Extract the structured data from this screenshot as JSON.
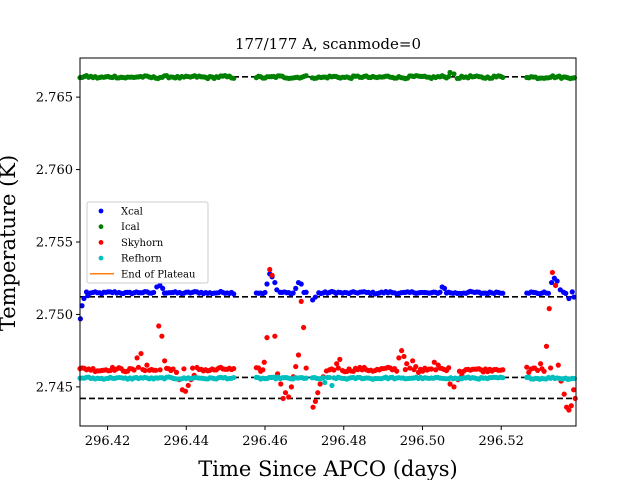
{
  "chart_data": {
    "type": "scatter",
    "title": "177/177 A, scanmode=0",
    "xlabel": "Time Since APCO (days)",
    "ylabel": "Temperature (K)",
    "xlim": [
      296.413,
      296.539
    ],
    "ylim": [
      2.7423,
      2.7677
    ],
    "xticks": [
      296.42,
      296.44,
      296.46,
      296.48,
      296.5,
      296.52
    ],
    "xtick_labels": [
      "296.42",
      "296.44",
      "296.46",
      "296.48",
      "296.50",
      "296.52"
    ],
    "yticks": [
      2.745,
      2.75,
      2.755,
      2.76,
      2.765
    ],
    "ytick_labels": [
      "2.745",
      "2.750",
      "2.755",
      "2.760",
      "2.765"
    ],
    "legend_position": "center-left",
    "segments": [
      [
        296.413,
        296.4525
      ],
      [
        296.4578,
        296.4705
      ],
      [
        296.472,
        296.5205
      ],
      [
        296.5265,
        296.539
      ]
    ],
    "reference_lines": [
      {
        "y": 2.7664,
        "x_ranges": [
          [
            296.413,
            296.5265
          ]
        ]
      },
      {
        "y": 2.75122,
        "x_ranges": [
          [
            296.413,
            296.539
          ]
        ]
      },
      {
        "y": 2.74565,
        "x_ranges": [
          [
            296.413,
            296.539
          ]
        ]
      },
      {
        "y": 2.7442,
        "x_ranges": [
          [
            296.413,
            296.539
          ]
        ]
      }
    ],
    "series": [
      {
        "name": "Xcal",
        "color": "#0000ff",
        "marker": "circle",
        "base": 2.7515,
        "noise": 7e-05,
        "points": [
          [
            296.4131,
            2.7497
          ],
          [
            296.4135,
            2.7506
          ],
          [
            296.414,
            2.7511
          ],
          [
            296.415,
            2.7513
          ],
          [
            296.4325,
            2.7519
          ],
          [
            296.4333,
            2.752
          ],
          [
            296.434,
            2.7518
          ],
          [
            296.4605,
            2.7521
          ],
          [
            296.4612,
            2.7528
          ],
          [
            296.4618,
            2.7526
          ],
          [
            296.4625,
            2.7522
          ],
          [
            296.463,
            2.7517
          ],
          [
            296.4678,
            2.7518
          ],
          [
            296.4685,
            2.7522
          ],
          [
            296.4692,
            2.7521
          ],
          [
            296.4721,
            2.751
          ],
          [
            296.4728,
            2.7512
          ],
          [
            296.505,
            2.7519
          ],
          [
            296.5056,
            2.7518
          ],
          [
            296.5328,
            2.7522
          ],
          [
            296.5335,
            2.7525
          ],
          [
            296.5342,
            2.7523
          ],
          [
            296.535,
            2.7517
          ],
          [
            296.5372,
            2.7511
          ],
          [
            296.5385,
            2.7512
          ]
        ]
      },
      {
        "name": "Ical",
        "color": "#008000",
        "marker": "circle",
        "base": 2.76638,
        "noise": 8e-05,
        "points": [
          [
            296.507,
            2.7667
          ],
          [
            296.508,
            2.7666
          ]
        ]
      },
      {
        "name": "Skyhorn",
        "color": "#ff0000",
        "marker": "circle",
        "base": 2.7462,
        "noise": 0.00012,
        "points": [
          [
            296.4275,
            2.747
          ],
          [
            296.4285,
            2.7473
          ],
          [
            296.43,
            2.7465
          ],
          [
            296.433,
            2.7492
          ],
          [
            296.4338,
            2.7485
          ],
          [
            296.4345,
            2.7468
          ],
          [
            296.4375,
            2.746
          ],
          [
            296.4382,
            2.7455
          ],
          [
            296.439,
            2.7448
          ],
          [
            296.4398,
            2.7447
          ],
          [
            296.4405,
            2.7451
          ],
          [
            296.4412,
            2.7455
          ],
          [
            296.442,
            2.7458
          ],
          [
            296.4598,
            2.7467
          ],
          [
            296.4605,
            2.7484
          ],
          [
            296.4612,
            2.7531
          ],
          [
            296.4618,
            2.7527
          ],
          [
            296.4625,
            2.7485
          ],
          [
            296.4632,
            2.7459
          ],
          [
            296.464,
            2.7452
          ],
          [
            296.4646,
            2.7442
          ],
          [
            296.4652,
            2.7446
          ],
          [
            296.466,
            2.7443
          ],
          [
            296.4667,
            2.745
          ],
          [
            296.4672,
            2.7457
          ],
          [
            296.4678,
            2.7464
          ],
          [
            296.4685,
            2.7472
          ],
          [
            296.4692,
            2.7509
          ],
          [
            296.4698,
            2.7491
          ],
          [
            296.4722,
            2.7436
          ],
          [
            296.4728,
            2.744
          ],
          [
            296.4734,
            2.7446
          ],
          [
            296.474,
            2.7452
          ],
          [
            296.4748,
            2.7457
          ],
          [
            296.4756,
            2.7461
          ],
          [
            296.4782,
            2.7466
          ],
          [
            296.479,
            2.7469
          ],
          [
            296.494,
            2.747
          ],
          [
            296.4947,
            2.7475
          ],
          [
            296.4953,
            2.7471
          ],
          [
            296.496,
            2.7466
          ],
          [
            296.4968,
            2.7463
          ],
          [
            296.4975,
            2.7468
          ],
          [
            296.4983,
            2.7464
          ],
          [
            296.499,
            2.746
          ],
          [
            296.503,
            2.7467
          ],
          [
            296.504,
            2.7465
          ],
          [
            296.5055,
            2.7462
          ],
          [
            296.507,
            2.7452
          ],
          [
            296.508,
            2.745
          ],
          [
            296.509,
            2.7455
          ],
          [
            296.51,
            2.7458
          ],
          [
            296.527,
            2.746
          ],
          [
            296.5285,
            2.7463
          ],
          [
            296.53,
            2.7466
          ],
          [
            296.5315,
            2.7478
          ],
          [
            296.5322,
            2.7504
          ],
          [
            296.533,
            2.7529
          ],
          [
            296.5338,
            2.752
          ],
          [
            296.5345,
            2.7465
          ],
          [
            296.5352,
            2.7454
          ],
          [
            296.536,
            2.7445
          ],
          [
            296.5366,
            2.7436
          ],
          [
            296.5372,
            2.7434
          ],
          [
            296.5378,
            2.7437
          ],
          [
            296.5384,
            2.7448
          ],
          [
            296.5388,
            2.7442
          ]
        ]
      },
      {
        "name": "Refhorn",
        "color": "#00bfbf",
        "marker": "circle",
        "base": 2.7456,
        "noise": 6e-05,
        "points": [
          [
            296.4752,
            2.7453
          ],
          [
            296.477,
            2.7451
          ]
        ]
      },
      {
        "name": "End of Plateau",
        "color": "#ff7f0e",
        "marker": "line",
        "points": []
      }
    ]
  }
}
